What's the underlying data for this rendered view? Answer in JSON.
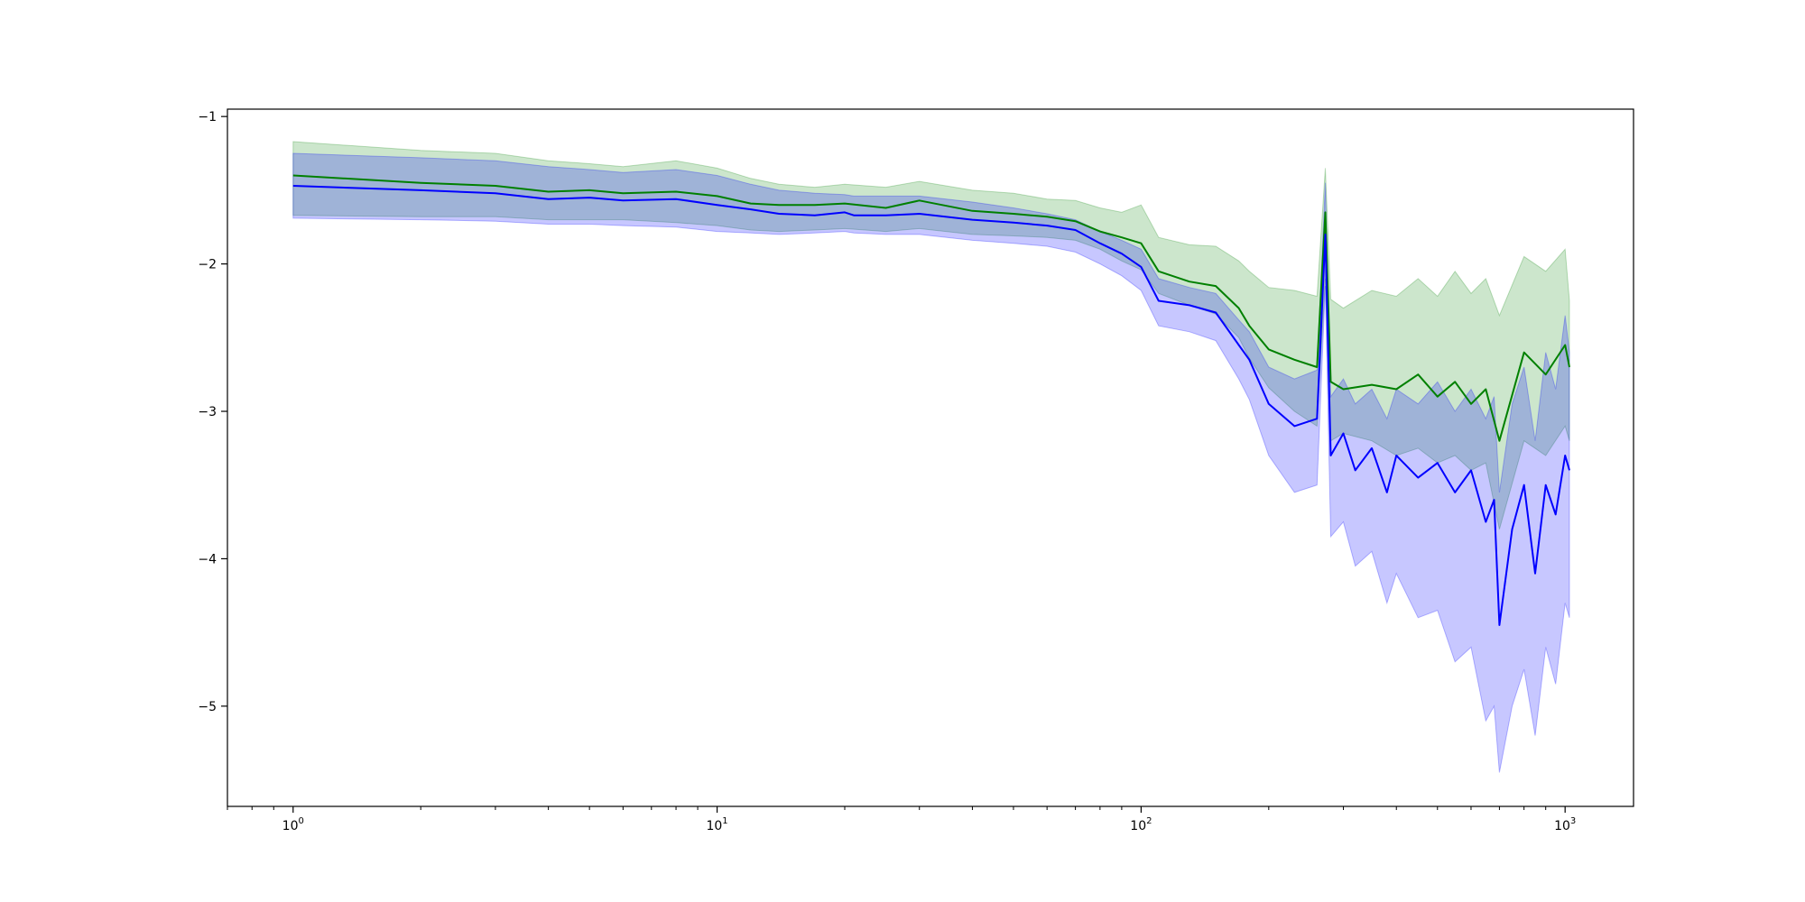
{
  "chart_data": {
    "type": "line",
    "title": "",
    "xlabel": "",
    "ylabel": "",
    "x_scale": "log",
    "xlim": [
      0.7,
      1450
    ],
    "ylim": [
      -5.68,
      -0.95
    ],
    "grid": false,
    "legend": "none",
    "x_ticks": [
      {
        "base": "10",
        "exp": "0",
        "value": 1
      },
      {
        "base": "10",
        "exp": "1",
        "value": 10
      },
      {
        "base": "10",
        "exp": "2",
        "value": 100
      },
      {
        "base": "10",
        "exp": "3",
        "value": 1000
      }
    ],
    "y_ticks": [
      {
        "label": "−1",
        "value": -1
      },
      {
        "label": "−2",
        "value": -2
      },
      {
        "label": "−3",
        "value": -3
      },
      {
        "label": "−4",
        "value": -4
      },
      {
        "label": "−5",
        "value": -5
      }
    ],
    "series": [
      {
        "color": "#008000",
        "band_color": "#008000",
        "band_opacity": 0.2,
        "x": [
          1,
          2,
          3,
          4,
          5,
          6,
          8,
          10,
          12,
          14,
          17,
          20,
          25,
          30,
          40,
          50,
          60,
          70,
          80,
          90,
          100,
          110,
          130,
          150,
          170,
          180,
          200,
          230,
          260,
          272,
          280,
          300,
          350,
          400,
          450,
          500,
          550,
          600,
          650,
          700,
          800,
          900,
          1000,
          1024
        ],
        "y": [
          -1.4,
          -1.45,
          -1.47,
          -1.51,
          -1.5,
          -1.52,
          -1.51,
          -1.54,
          -1.59,
          -1.6,
          -1.6,
          -1.59,
          -1.62,
          -1.57,
          -1.64,
          -1.66,
          -1.68,
          -1.71,
          -1.78,
          -1.82,
          -1.86,
          -2.05,
          -2.12,
          -2.15,
          -2.3,
          -2.42,
          -2.58,
          -2.65,
          -2.7,
          -1.65,
          -2.8,
          -2.85,
          -2.82,
          -2.85,
          -2.75,
          -2.9,
          -2.8,
          -2.95,
          -2.85,
          -3.2,
          -2.6,
          -2.75,
          -2.55,
          -2.7
        ],
        "upper": [
          -1.17,
          -1.23,
          -1.25,
          -1.3,
          -1.32,
          -1.34,
          -1.3,
          -1.35,
          -1.42,
          -1.46,
          -1.48,
          -1.46,
          -1.48,
          -1.44,
          -1.5,
          -1.52,
          -1.56,
          -1.57,
          -1.62,
          -1.65,
          -1.6,
          -1.82,
          -1.87,
          -1.88,
          -1.98,
          -2.05,
          -2.16,
          -2.18,
          -2.22,
          -1.35,
          -2.24,
          -2.3,
          -2.18,
          -2.22,
          -2.1,
          -2.22,
          -2.05,
          -2.2,
          -2.1,
          -2.35,
          -1.95,
          -2.05,
          -1.9,
          -2.25
        ],
        "lower": [
          -1.67,
          -1.68,
          -1.68,
          -1.7,
          -1.7,
          -1.7,
          -1.72,
          -1.74,
          -1.77,
          -1.78,
          -1.77,
          -1.76,
          -1.78,
          -1.76,
          -1.8,
          -1.81,
          -1.82,
          -1.84,
          -1.9,
          -1.98,
          -2.04,
          -2.2,
          -2.28,
          -2.34,
          -2.5,
          -2.64,
          -2.84,
          -3.0,
          -3.1,
          -2.1,
          -3.2,
          -3.15,
          -3.2,
          -3.3,
          -3.25,
          -3.35,
          -3.3,
          -3.4,
          -3.35,
          -3.8,
          -3.2,
          -3.3,
          -3.1,
          -3.2
        ]
      },
      {
        "color": "#0000ff",
        "band_color": "#0000ff",
        "band_opacity": 0.22,
        "x": [
          1,
          2,
          3,
          4,
          5,
          6,
          8,
          10,
          12,
          14,
          17,
          20,
          21,
          25,
          30,
          40,
          50,
          60,
          70,
          80,
          90,
          100,
          110,
          130,
          150,
          170,
          180,
          200,
          230,
          260,
          272,
          280,
          300,
          320,
          350,
          380,
          400,
          450,
          500,
          550,
          600,
          650,
          680,
          700,
          750,
          800,
          850,
          900,
          950,
          1000,
          1024
        ],
        "y": [
          -1.47,
          -1.5,
          -1.52,
          -1.56,
          -1.55,
          -1.57,
          -1.56,
          -1.6,
          -1.63,
          -1.66,
          -1.67,
          -1.65,
          -1.67,
          -1.67,
          -1.66,
          -1.7,
          -1.72,
          -1.74,
          -1.77,
          -1.86,
          -1.93,
          -2.02,
          -2.25,
          -2.28,
          -2.33,
          -2.55,
          -2.65,
          -2.95,
          -3.1,
          -3.05,
          -1.8,
          -3.3,
          -3.15,
          -3.4,
          -3.25,
          -3.55,
          -3.3,
          -3.45,
          -3.35,
          -3.55,
          -3.4,
          -3.75,
          -3.6,
          -4.45,
          -3.8,
          -3.5,
          -4.1,
          -3.5,
          -3.7,
          -3.3,
          -3.4
        ],
        "upper": [
          -1.25,
          -1.28,
          -1.3,
          -1.34,
          -1.36,
          -1.38,
          -1.36,
          -1.4,
          -1.46,
          -1.5,
          -1.52,
          -1.53,
          -1.54,
          -1.54,
          -1.54,
          -1.58,
          -1.62,
          -1.66,
          -1.7,
          -1.78,
          -1.84,
          -1.9,
          -2.1,
          -2.16,
          -2.2,
          -2.38,
          -2.46,
          -2.7,
          -2.78,
          -2.72,
          -1.45,
          -2.9,
          -2.78,
          -2.95,
          -2.85,
          -3.05,
          -2.85,
          -2.95,
          -2.8,
          -3.0,
          -2.85,
          -3.05,
          -2.9,
          -3.55,
          -2.95,
          -2.7,
          -3.2,
          -2.6,
          -2.85,
          -2.35,
          -2.6
        ],
        "lower": [
          -1.69,
          -1.7,
          -1.71,
          -1.73,
          -1.73,
          -1.74,
          -1.75,
          -1.78,
          -1.79,
          -1.8,
          -1.79,
          -1.78,
          -1.79,
          -1.8,
          -1.8,
          -1.84,
          -1.86,
          -1.88,
          -1.92,
          -2.0,
          -2.08,
          -2.18,
          -2.42,
          -2.46,
          -2.52,
          -2.78,
          -2.92,
          -3.3,
          -3.55,
          -3.5,
          -2.15,
          -3.85,
          -3.75,
          -4.05,
          -3.95,
          -4.3,
          -4.1,
          -4.4,
          -4.35,
          -4.7,
          -4.6,
          -5.1,
          -5.0,
          -5.45,
          -5.0,
          -4.75,
          -5.2,
          -4.6,
          -4.85,
          -4.3,
          -4.4
        ]
      }
    ]
  }
}
